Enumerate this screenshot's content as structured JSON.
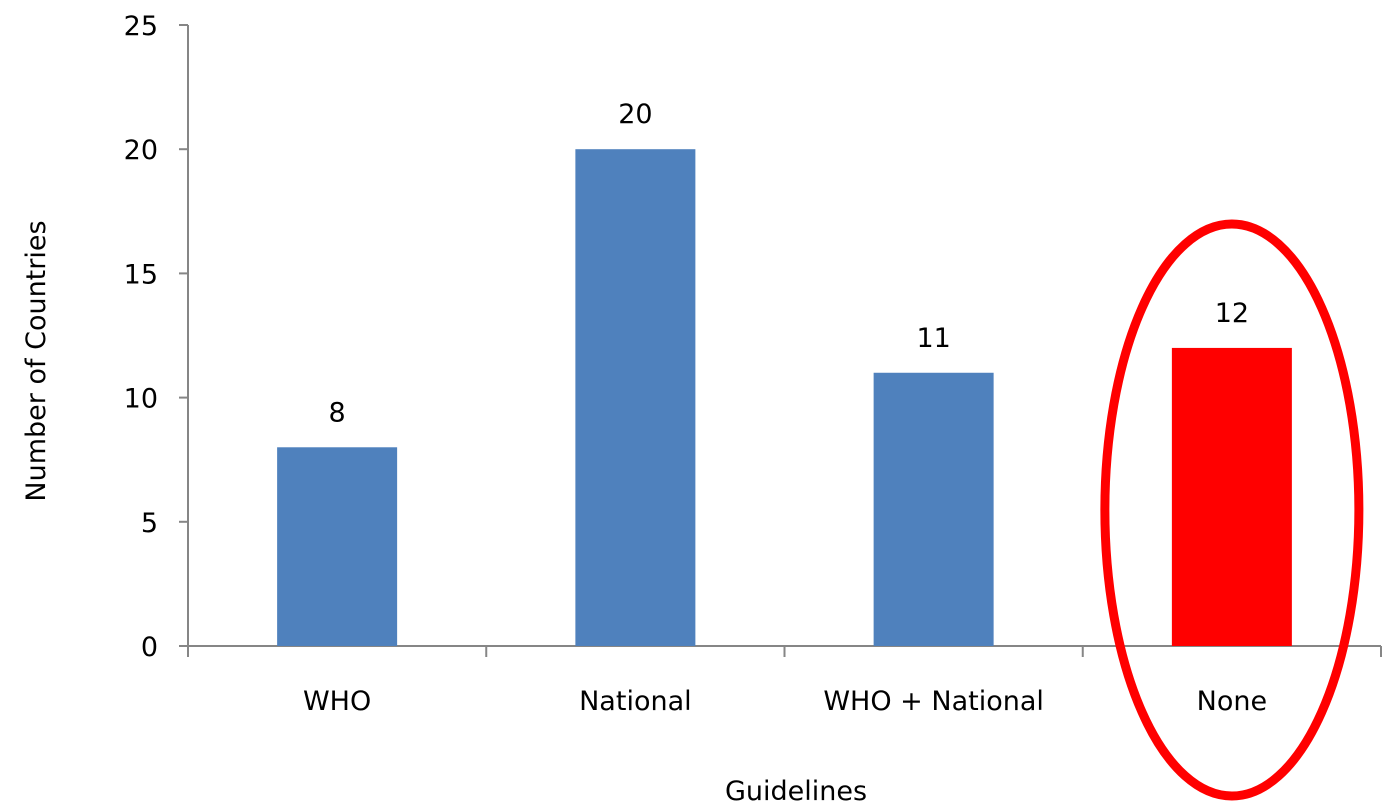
{
  "chart_data": {
    "type": "bar",
    "xlabel": "Guidelines",
    "ylabel": "Number of Countries",
    "categories": [
      "WHO",
      "National",
      "WHO + National",
      "None"
    ],
    "values": [
      8,
      20,
      11,
      12
    ],
    "data_labels": [
      "8",
      "20",
      "11",
      "12"
    ],
    "ylim": [
      0,
      25
    ],
    "yticks": [
      0,
      5,
      10,
      15,
      20,
      25
    ],
    "ytick_labels": [
      "0",
      "5",
      "10",
      "15",
      "20",
      "25"
    ],
    "grid": false,
    "legend": "none",
    "bar_colors": [
      "#4f81bd",
      "#4f81bd",
      "#4f81bd",
      "#ff0000"
    ],
    "annotation": {
      "type": "ellipse",
      "target_category": "None",
      "color": "#ff0000"
    }
  }
}
